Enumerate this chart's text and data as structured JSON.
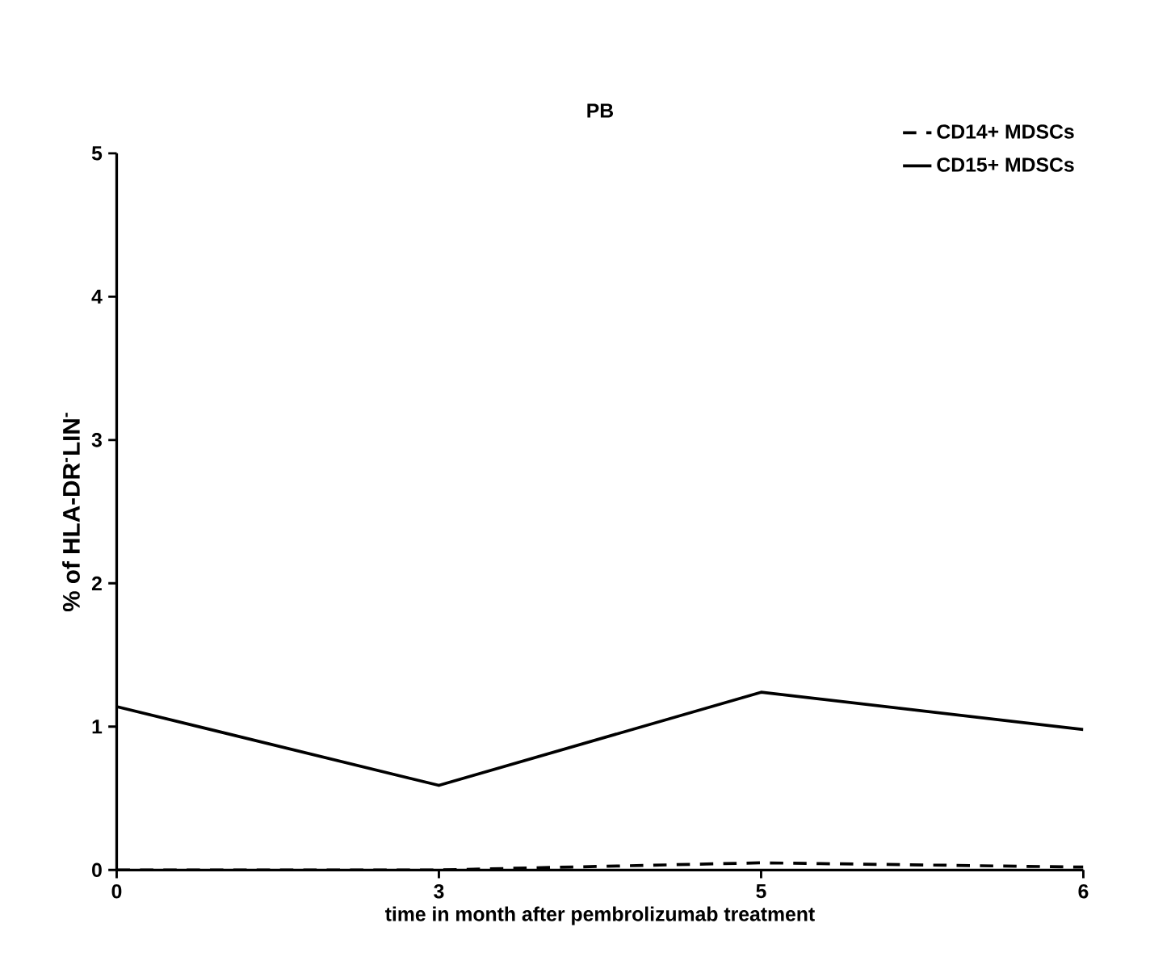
{
  "chart_data": {
    "type": "line",
    "title": "PB",
    "xlabel": "time in month after pembrolizumab treatment",
    "ylabel": "% of HLA-DR$^{-}$LIN$^{-}$",
    "categories": [
      "0",
      "3",
      "5",
      "6"
    ],
    "series": [
      {
        "name": "CD14+ MDSCs",
        "color": "#000000",
        "line_style": "dashed",
        "values": [
          0,
          0,
          0.05,
          0.02
        ]
      },
      {
        "name": "CD15+ MDSCs",
        "color": "#000000",
        "line_style": "solid",
        "values": [
          1.14,
          0.59,
          1.24,
          0.98
        ]
      }
    ],
    "ylim": [
      0,
      5
    ],
    "yticks": [
      0,
      1,
      2,
      3,
      4,
      5
    ],
    "legend": "top right",
    "marker": "none",
    "grid": false
  }
}
